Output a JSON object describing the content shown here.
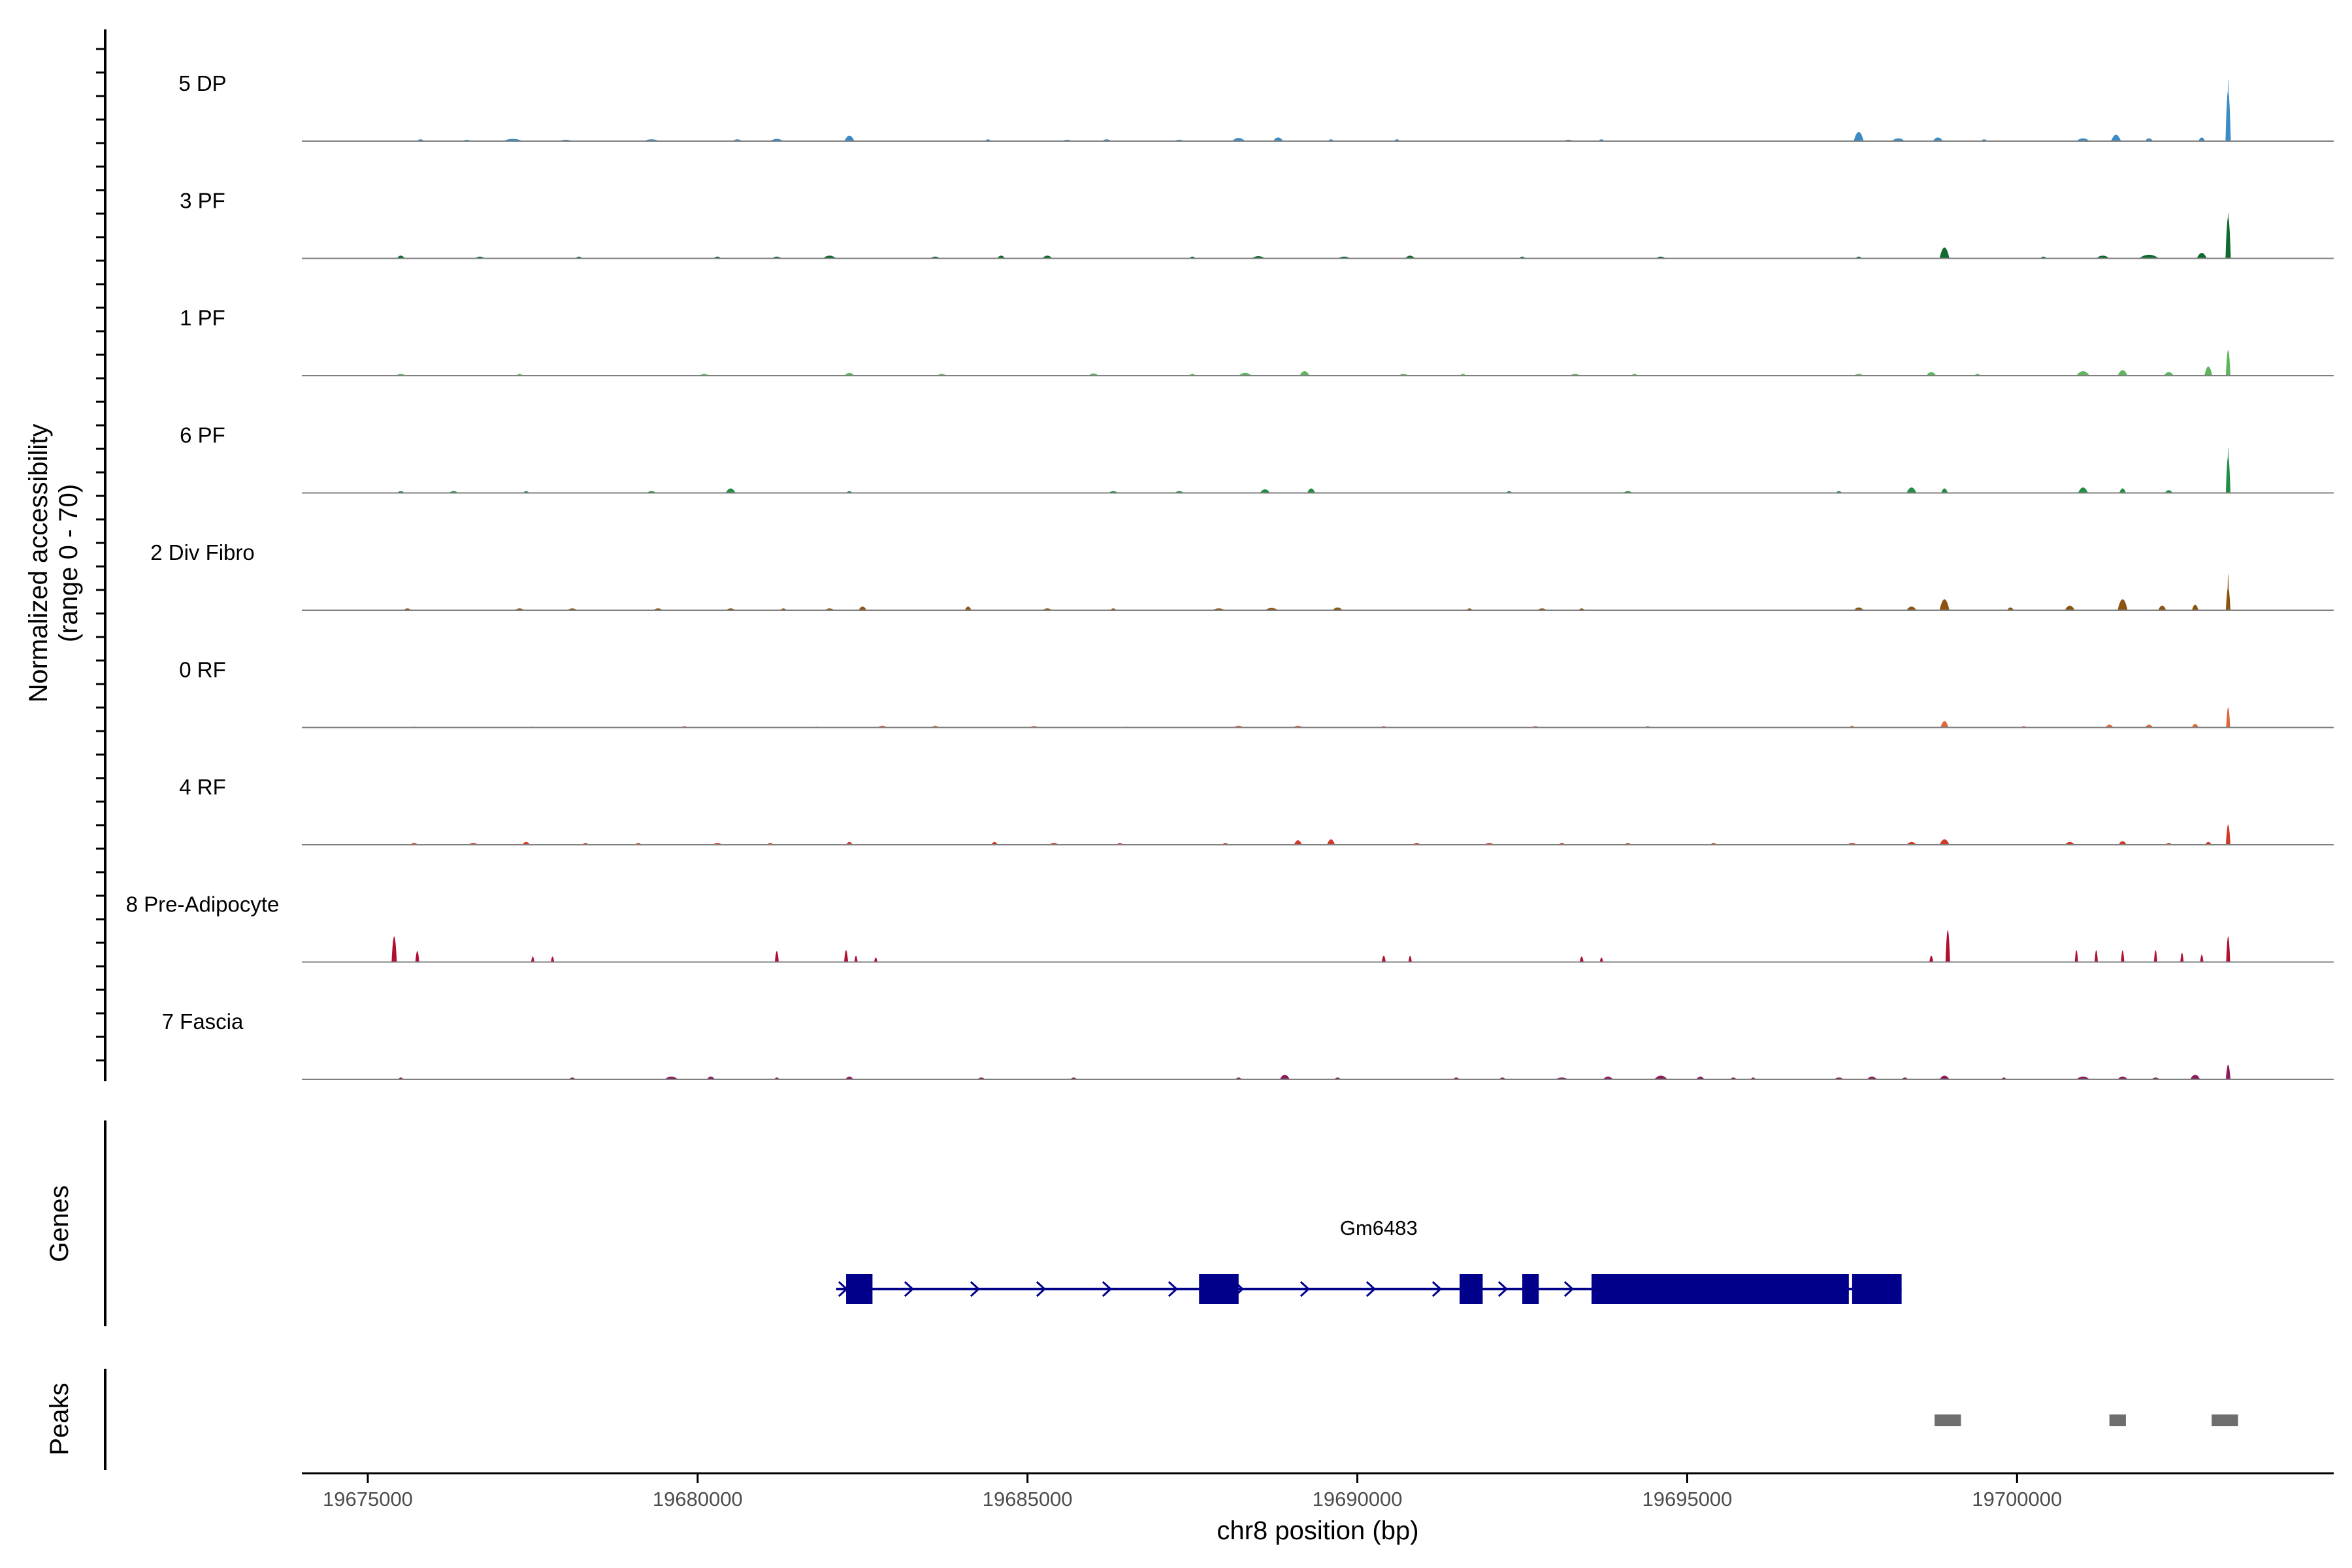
{
  "chart_data": {
    "type": "area",
    "title": "",
    "xlabel": "chr8 position (bp)",
    "ylabel": [
      "Normalized accessibility",
      "(range 0 - 70)"
    ],
    "ylim": [
      0,
      70
    ],
    "xlim": [
      19674000,
      19704800
    ],
    "x_ticks": [
      19675000,
      19680000,
      19685000,
      19690000,
      19695000,
      19700000
    ],
    "panel_labels": {
      "genes": "Genes",
      "peaks": "Peaks"
    },
    "tracks": [
      {
        "name": "5 DP",
        "color": "#3A8BC6",
        "peaks": [
          [
            19675800,
            2,
            120
          ],
          [
            19676500,
            1.5,
            120
          ],
          [
            19677200,
            2.5,
            300
          ],
          [
            19678000,
            1.5,
            200
          ],
          [
            19679300,
            2,
            250
          ],
          [
            19680600,
            2,
            150
          ],
          [
            19681200,
            2.5,
            200
          ],
          [
            19682300,
            6,
            150
          ],
          [
            19684400,
            2,
            100
          ],
          [
            19685600,
            1.5,
            150
          ],
          [
            19686200,
            2,
            150
          ],
          [
            19687300,
            1.5,
            150
          ],
          [
            19688200,
            3.5,
            200
          ],
          [
            19688800,
            4,
            150
          ],
          [
            19689600,
            2,
            100
          ],
          [
            19690600,
            2,
            100
          ],
          [
            19693200,
            1.5,
            150
          ],
          [
            19693700,
            2,
            100
          ],
          [
            19697600,
            10,
            150
          ],
          [
            19698200,
            3,
            200
          ],
          [
            19698800,
            4,
            150
          ],
          [
            19699500,
            2,
            100
          ],
          [
            19701000,
            3,
            200
          ],
          [
            19701500,
            7,
            150
          ],
          [
            19702000,
            3,
            120
          ],
          [
            19702800,
            4,
            100
          ],
          [
            19703200,
            55,
            80
          ],
          [
            19703200,
            68,
            25
          ]
        ]
      },
      {
        "name": "3 PF",
        "color": "#0E6A2E",
        "peaks": [
          [
            19675500,
            3,
            120
          ],
          [
            19676700,
            2,
            150
          ],
          [
            19678200,
            2,
            100
          ],
          [
            19680300,
            2,
            120
          ],
          [
            19681200,
            2,
            150
          ],
          [
            19682000,
            3,
            200
          ],
          [
            19683600,
            2,
            150
          ],
          [
            19684600,
            3,
            120
          ],
          [
            19685300,
            3,
            150
          ],
          [
            19687500,
            2,
            100
          ],
          [
            19688500,
            2.5,
            200
          ],
          [
            19689800,
            2,
            200
          ],
          [
            19690800,
            3,
            150
          ],
          [
            19692500,
            2,
            100
          ],
          [
            19694600,
            2,
            150
          ],
          [
            19697600,
            2,
            100
          ],
          [
            19698900,
            12,
            150
          ],
          [
            19700400,
            2,
            100
          ],
          [
            19701300,
            3,
            200
          ],
          [
            19702000,
            4,
            300
          ],
          [
            19702800,
            6,
            150
          ],
          [
            19703200,
            45,
            80
          ],
          [
            19703200,
            50,
            30
          ]
        ]
      },
      {
        "name": "1 PF",
        "color": "#5EB55E",
        "peaks": [
          [
            19675500,
            2,
            150
          ],
          [
            19677300,
            2,
            100
          ],
          [
            19680100,
            2,
            150
          ],
          [
            19682300,
            3,
            150
          ],
          [
            19683700,
            2,
            150
          ],
          [
            19686000,
            2.5,
            150
          ],
          [
            19687500,
            2,
            100
          ],
          [
            19688300,
            3,
            200
          ],
          [
            19689200,
            5,
            150
          ],
          [
            19690700,
            2,
            150
          ],
          [
            19691600,
            2,
            100
          ],
          [
            19693300,
            2,
            150
          ],
          [
            19694200,
            2,
            100
          ],
          [
            19697600,
            2,
            150
          ],
          [
            19698700,
            4,
            150
          ],
          [
            19699400,
            2,
            100
          ],
          [
            19701000,
            5,
            200
          ],
          [
            19701600,
            6,
            150
          ],
          [
            19702300,
            4,
            150
          ],
          [
            19702900,
            10,
            120
          ],
          [
            19703200,
            28,
            70
          ]
        ]
      },
      {
        "name": "6 PF",
        "color": "#228E45",
        "peaks": [
          [
            19675500,
            2,
            120
          ],
          [
            19676300,
            2,
            150
          ],
          [
            19677400,
            2,
            100
          ],
          [
            19679300,
            2,
            150
          ],
          [
            19680500,
            5,
            150
          ],
          [
            19682300,
            2,
            100
          ],
          [
            19686300,
            2,
            150
          ],
          [
            19687300,
            2,
            150
          ],
          [
            19688600,
            4,
            150
          ],
          [
            19689300,
            5,
            120
          ],
          [
            19692300,
            2,
            100
          ],
          [
            19694100,
            2,
            150
          ],
          [
            19697300,
            2,
            100
          ],
          [
            19698400,
            6,
            150
          ],
          [
            19698900,
            5,
            100
          ],
          [
            19701000,
            6,
            150
          ],
          [
            19701600,
            5,
            100
          ],
          [
            19702300,
            3,
            120
          ],
          [
            19703200,
            40,
            70
          ],
          [
            19703200,
            50,
            25
          ]
        ]
      },
      {
        "name": "2 Div Fibro",
        "color": "#8C5410",
        "peaks": [
          [
            19675600,
            2,
            120
          ],
          [
            19677300,
            2,
            150
          ],
          [
            19678100,
            2,
            150
          ],
          [
            19679400,
            2,
            150
          ],
          [
            19680500,
            2,
            150
          ],
          [
            19681300,
            2,
            100
          ],
          [
            19682000,
            2,
            150
          ],
          [
            19682500,
            4,
            120
          ],
          [
            19684100,
            4,
            100
          ],
          [
            19685300,
            2,
            150
          ],
          [
            19686300,
            2,
            100
          ],
          [
            19687900,
            2,
            200
          ],
          [
            19688700,
            2.5,
            200
          ],
          [
            19689700,
            3,
            150
          ],
          [
            19691700,
            2,
            100
          ],
          [
            19692800,
            2,
            150
          ],
          [
            19693400,
            2,
            100
          ],
          [
            19697600,
            3,
            150
          ],
          [
            19698400,
            4,
            150
          ],
          [
            19698900,
            12,
            150
          ],
          [
            19699900,
            3,
            100
          ],
          [
            19700800,
            5,
            150
          ],
          [
            19701600,
            12,
            150
          ],
          [
            19702200,
            5,
            120
          ],
          [
            19702700,
            6,
            100
          ],
          [
            19703200,
            25,
            70
          ],
          [
            19703200,
            40,
            25
          ]
        ]
      },
      {
        "name": "0 RF",
        "color": "#E0663A",
        "peaks": [
          [
            19675700,
            1,
            100
          ],
          [
            19677500,
            1,
            80
          ],
          [
            19679800,
            1.5,
            100
          ],
          [
            19681800,
            1,
            100
          ],
          [
            19682800,
            2,
            150
          ],
          [
            19683600,
            2,
            120
          ],
          [
            19685100,
            1.5,
            150
          ],
          [
            19686500,
            1,
            80
          ],
          [
            19688200,
            2,
            150
          ],
          [
            19689100,
            2,
            150
          ],
          [
            19690400,
            1.5,
            100
          ],
          [
            19692700,
            1.5,
            120
          ],
          [
            19694400,
            1.5,
            80
          ],
          [
            19697500,
            2,
            80
          ],
          [
            19698900,
            7,
            120
          ],
          [
            19700100,
            1.5,
            80
          ],
          [
            19701400,
            3,
            120
          ],
          [
            19702000,
            3,
            120
          ],
          [
            19702700,
            4,
            100
          ],
          [
            19703200,
            22,
            60
          ]
        ]
      },
      {
        "name": "4 RF",
        "color": "#CF3A2A",
        "peaks": [
          [
            19675700,
            2,
            120
          ],
          [
            19676600,
            2,
            150
          ],
          [
            19677400,
            3,
            120
          ],
          [
            19678300,
            2,
            100
          ],
          [
            19679100,
            2,
            100
          ],
          [
            19680300,
            2,
            150
          ],
          [
            19681100,
            2,
            100
          ],
          [
            19682300,
            3,
            100
          ],
          [
            19684500,
            3,
            100
          ],
          [
            19685400,
            2,
            150
          ],
          [
            19686400,
            2,
            100
          ],
          [
            19688000,
            2,
            100
          ],
          [
            19689100,
            5,
            120
          ],
          [
            19689600,
            6,
            120
          ],
          [
            19690900,
            2,
            120
          ],
          [
            19692000,
            2,
            150
          ],
          [
            19693100,
            2,
            100
          ],
          [
            19694100,
            2,
            100
          ],
          [
            19695400,
            2,
            100
          ],
          [
            19697500,
            2,
            150
          ],
          [
            19698400,
            3,
            150
          ],
          [
            19698900,
            6,
            150
          ],
          [
            19700800,
            3,
            150
          ],
          [
            19701600,
            4,
            120
          ],
          [
            19702300,
            2,
            100
          ],
          [
            19702900,
            3,
            100
          ],
          [
            19703200,
            22,
            70
          ]
        ]
      },
      {
        "name": "8 Pre-Adipocyte",
        "color": "#B01030",
        "peaks": [
          [
            19675400,
            28,
            80
          ],
          [
            19675750,
            12,
            60
          ],
          [
            19677500,
            6,
            50
          ],
          [
            19677800,
            6,
            50
          ],
          [
            19681200,
            12,
            60
          ],
          [
            19682250,
            13,
            60
          ],
          [
            19682400,
            7,
            50
          ],
          [
            19682700,
            5,
            50
          ],
          [
            19690400,
            7,
            60
          ],
          [
            19690800,
            7,
            50
          ],
          [
            19693400,
            6,
            60
          ],
          [
            19693700,
            5,
            50
          ],
          [
            19698700,
            7,
            60
          ],
          [
            19698950,
            35,
            70
          ],
          [
            19700900,
            13,
            50
          ],
          [
            19701200,
            13,
            50
          ],
          [
            19701600,
            13,
            50
          ],
          [
            19702100,
            13,
            50
          ],
          [
            19702500,
            10,
            50
          ],
          [
            19702800,
            8,
            50
          ],
          [
            19703200,
            28,
            60
          ]
        ]
      },
      {
        "name": "7 Fascia",
        "color": "#8A1C5A",
        "peaks": [
          [
            19675500,
            2,
            80
          ],
          [
            19678100,
            2,
            100
          ],
          [
            19679600,
            3,
            200
          ],
          [
            19680200,
            3,
            120
          ],
          [
            19681200,
            2,
            80
          ],
          [
            19682300,
            3,
            120
          ],
          [
            19684300,
            2,
            120
          ],
          [
            19685700,
            2,
            100
          ],
          [
            19688200,
            2,
            100
          ],
          [
            19688900,
            5,
            150
          ],
          [
            19689700,
            2,
            100
          ],
          [
            19691500,
            2,
            100
          ],
          [
            19692200,
            2,
            100
          ],
          [
            19693100,
            2,
            200
          ],
          [
            19693800,
            3,
            150
          ],
          [
            19694600,
            4,
            200
          ],
          [
            19695200,
            3,
            120
          ],
          [
            19695700,
            2,
            100
          ],
          [
            19696000,
            2,
            80
          ],
          [
            19697300,
            2,
            150
          ],
          [
            19697800,
            3,
            150
          ],
          [
            19698300,
            2,
            100
          ],
          [
            19698900,
            4,
            150
          ],
          [
            19699800,
            2,
            80
          ],
          [
            19701000,
            3,
            200
          ],
          [
            19701600,
            3,
            150
          ],
          [
            19702100,
            2,
            120
          ],
          [
            19702700,
            5,
            150
          ],
          [
            19703200,
            16,
            70
          ]
        ]
      }
    ],
    "gene": {
      "name": "Gm6483",
      "start": 19682100,
      "end": 19698250,
      "strand": "+",
      "color": "#00008B",
      "exons": [
        [
          19682250,
          19682650
        ],
        [
          19687600,
          19688200
        ],
        [
          19691550,
          19691900
        ],
        [
          19692500,
          19692750
        ],
        [
          19693550,
          19697450
        ],
        [
          19697500,
          19698250
        ]
      ]
    },
    "peak_regions": {
      "color": "#6E6E6E",
      "regions": [
        [
          19698750,
          19699150
        ],
        [
          19701400,
          19701650
        ],
        [
          19702950,
          19703350
        ]
      ]
    }
  }
}
